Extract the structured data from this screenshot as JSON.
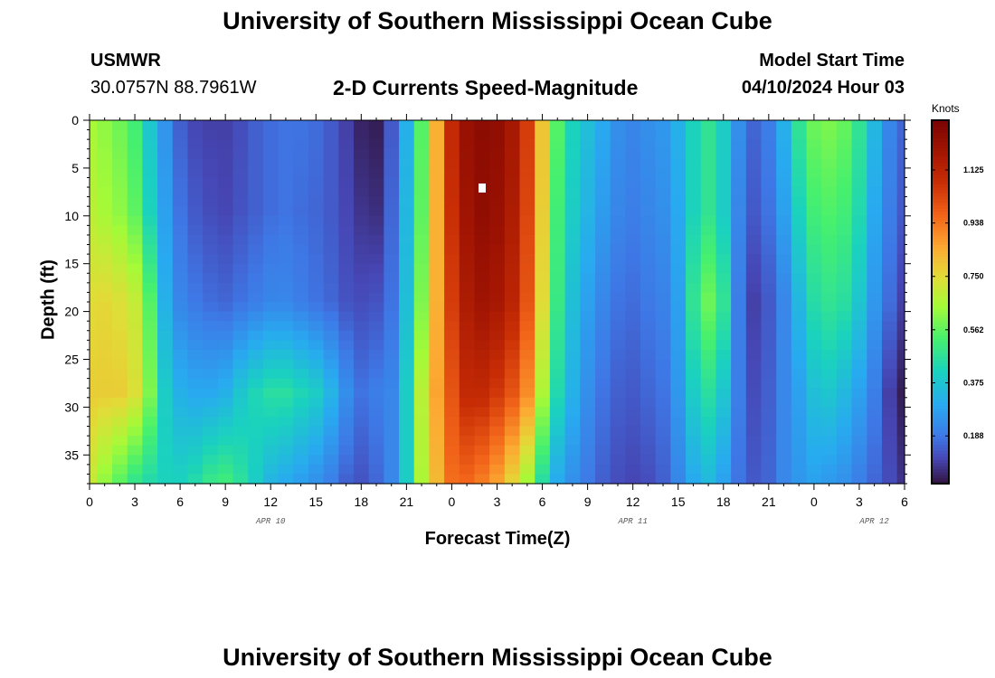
{
  "header": {
    "title": "University of Southern Mississippi Ocean Cube",
    "station": "USMWR",
    "coords": "30.0757N  88.7961W",
    "subtitle": "2-D Currents Speed-Magnitude",
    "model_label": "Model Start Time",
    "model_time": "04/10/2024 Hour 03"
  },
  "footer": {
    "title": "University of Southern Mississippi Ocean Cube"
  },
  "chart_data": {
    "type": "heatmap",
    "title": "2-D Currents Speed-Magnitude",
    "xlabel": "Forecast Time(Z)",
    "ylabel": "Depth (ft)",
    "x_start": "04/10/2024 00Z",
    "x_end": "04/12/2024 06Z",
    "x_tick_labels": [
      "0",
      "3",
      "6",
      "9",
      "12",
      "15",
      "18",
      "21",
      "0",
      "3",
      "6",
      "9",
      "12",
      "15",
      "18",
      "21",
      "0",
      "3",
      "6"
    ],
    "x_date_labels": [
      "APR 10",
      "APR 11",
      "APR 12"
    ],
    "y_tick_labels": [
      "0",
      "5",
      "10",
      "15",
      "20",
      "25",
      "30",
      "35"
    ],
    "ylim": [
      38,
      0
    ],
    "colorbar": {
      "unit": "Knots",
      "ticks": [
        "0.188",
        "0.375",
        "0.562",
        "0.750",
        "0.938",
        "1.125"
      ],
      "range": [
        0.02,
        1.3
      ]
    },
    "z_units": "Knots",
    "columns_hour_offset": [
      0,
      1,
      2,
      3,
      4,
      5,
      6,
      7,
      8,
      9,
      10,
      11,
      12,
      13,
      14,
      15,
      16,
      17,
      18,
      19,
      20,
      21,
      22,
      23,
      24,
      25,
      26,
      27,
      28,
      29,
      30,
      31,
      32,
      33,
      34,
      35,
      36,
      37,
      38,
      39,
      40,
      41,
      42,
      43,
      44,
      45,
      46,
      47,
      48,
      49,
      50,
      51,
      52,
      53,
      54
    ],
    "profile_depths_ft": [
      0,
      9.5,
      19,
      28.5,
      38
    ],
    "speed_profiles": [
      [
        0.65,
        0.68,
        0.75,
        0.78,
        0.7
      ],
      [
        0.62,
        0.65,
        0.76,
        0.78,
        0.62
      ],
      [
        0.58,
        0.62,
        0.74,
        0.78,
        0.55
      ],
      [
        0.52,
        0.56,
        0.7,
        0.74,
        0.48
      ],
      [
        0.38,
        0.42,
        0.55,
        0.6,
        0.44
      ],
      [
        0.25,
        0.28,
        0.32,
        0.4,
        0.42
      ],
      [
        0.15,
        0.18,
        0.22,
        0.32,
        0.42
      ],
      [
        0.11,
        0.14,
        0.19,
        0.3,
        0.45
      ],
      [
        0.1,
        0.12,
        0.17,
        0.3,
        0.5
      ],
      [
        0.1,
        0.11,
        0.16,
        0.32,
        0.52
      ],
      [
        0.12,
        0.13,
        0.18,
        0.38,
        0.47
      ],
      [
        0.15,
        0.15,
        0.2,
        0.43,
        0.4
      ],
      [
        0.17,
        0.17,
        0.22,
        0.46,
        0.33
      ],
      [
        0.18,
        0.18,
        0.22,
        0.46,
        0.3
      ],
      [
        0.18,
        0.17,
        0.2,
        0.43,
        0.27
      ],
      [
        0.17,
        0.16,
        0.18,
        0.4,
        0.24
      ],
      [
        0.14,
        0.14,
        0.16,
        0.33,
        0.2
      ],
      [
        0.1,
        0.11,
        0.13,
        0.24,
        0.15
      ],
      [
        0.05,
        0.08,
        0.12,
        0.18,
        0.13
      ],
      [
        0.04,
        0.07,
        0.13,
        0.2,
        0.16
      ],
      [
        0.14,
        0.16,
        0.18,
        0.22,
        0.22
      ],
      [
        0.32,
        0.34,
        0.36,
        0.4,
        0.4
      ],
      [
        0.55,
        0.56,
        0.6,
        0.68,
        0.66
      ],
      [
        0.84,
        0.84,
        0.84,
        0.86,
        0.82
      ],
      [
        1.1,
        1.08,
        1.05,
        1.0,
        0.95
      ],
      [
        1.22,
        1.2,
        1.16,
        1.1,
        0.96
      ],
      [
        1.25,
        1.24,
        1.2,
        1.1,
        0.92
      ],
      [
        1.24,
        1.22,
        1.18,
        1.06,
        0.86
      ],
      [
        1.18,
        1.16,
        1.12,
        1.0,
        0.76
      ],
      [
        1.05,
        1.03,
        1.0,
        0.9,
        0.64
      ],
      [
        0.8,
        0.78,
        0.75,
        0.66,
        0.45
      ],
      [
        0.55,
        0.52,
        0.5,
        0.44,
        0.3
      ],
      [
        0.42,
        0.4,
        0.36,
        0.32,
        0.24
      ],
      [
        0.36,
        0.33,
        0.28,
        0.24,
        0.19
      ],
      [
        0.3,
        0.27,
        0.22,
        0.18,
        0.15
      ],
      [
        0.24,
        0.22,
        0.18,
        0.15,
        0.12
      ],
      [
        0.22,
        0.2,
        0.17,
        0.14,
        0.11
      ],
      [
        0.24,
        0.22,
        0.19,
        0.16,
        0.12
      ],
      [
        0.26,
        0.24,
        0.21,
        0.18,
        0.15
      ],
      [
        0.32,
        0.3,
        0.28,
        0.26,
        0.22
      ],
      [
        0.42,
        0.42,
        0.48,
        0.4,
        0.3
      ],
      [
        0.48,
        0.48,
        0.58,
        0.46,
        0.34
      ],
      [
        0.4,
        0.4,
        0.48,
        0.38,
        0.28
      ],
      [
        0.24,
        0.22,
        0.2,
        0.2,
        0.18
      ],
      [
        0.16,
        0.14,
        0.1,
        0.12,
        0.14
      ],
      [
        0.2,
        0.18,
        0.14,
        0.15,
        0.16
      ],
      [
        0.32,
        0.28,
        0.22,
        0.22,
        0.22
      ],
      [
        0.48,
        0.42,
        0.34,
        0.28,
        0.26
      ],
      [
        0.58,
        0.52,
        0.45,
        0.36,
        0.28
      ],
      [
        0.6,
        0.54,
        0.48,
        0.38,
        0.26
      ],
      [
        0.57,
        0.52,
        0.46,
        0.34,
        0.24
      ],
      [
        0.48,
        0.44,
        0.38,
        0.28,
        0.2
      ],
      [
        0.34,
        0.3,
        0.26,
        0.2,
        0.16
      ],
      [
        0.22,
        0.2,
        0.17,
        0.1,
        0.12
      ],
      [
        0.16,
        0.14,
        0.1,
        0.04,
        0.08
      ]
    ]
  }
}
